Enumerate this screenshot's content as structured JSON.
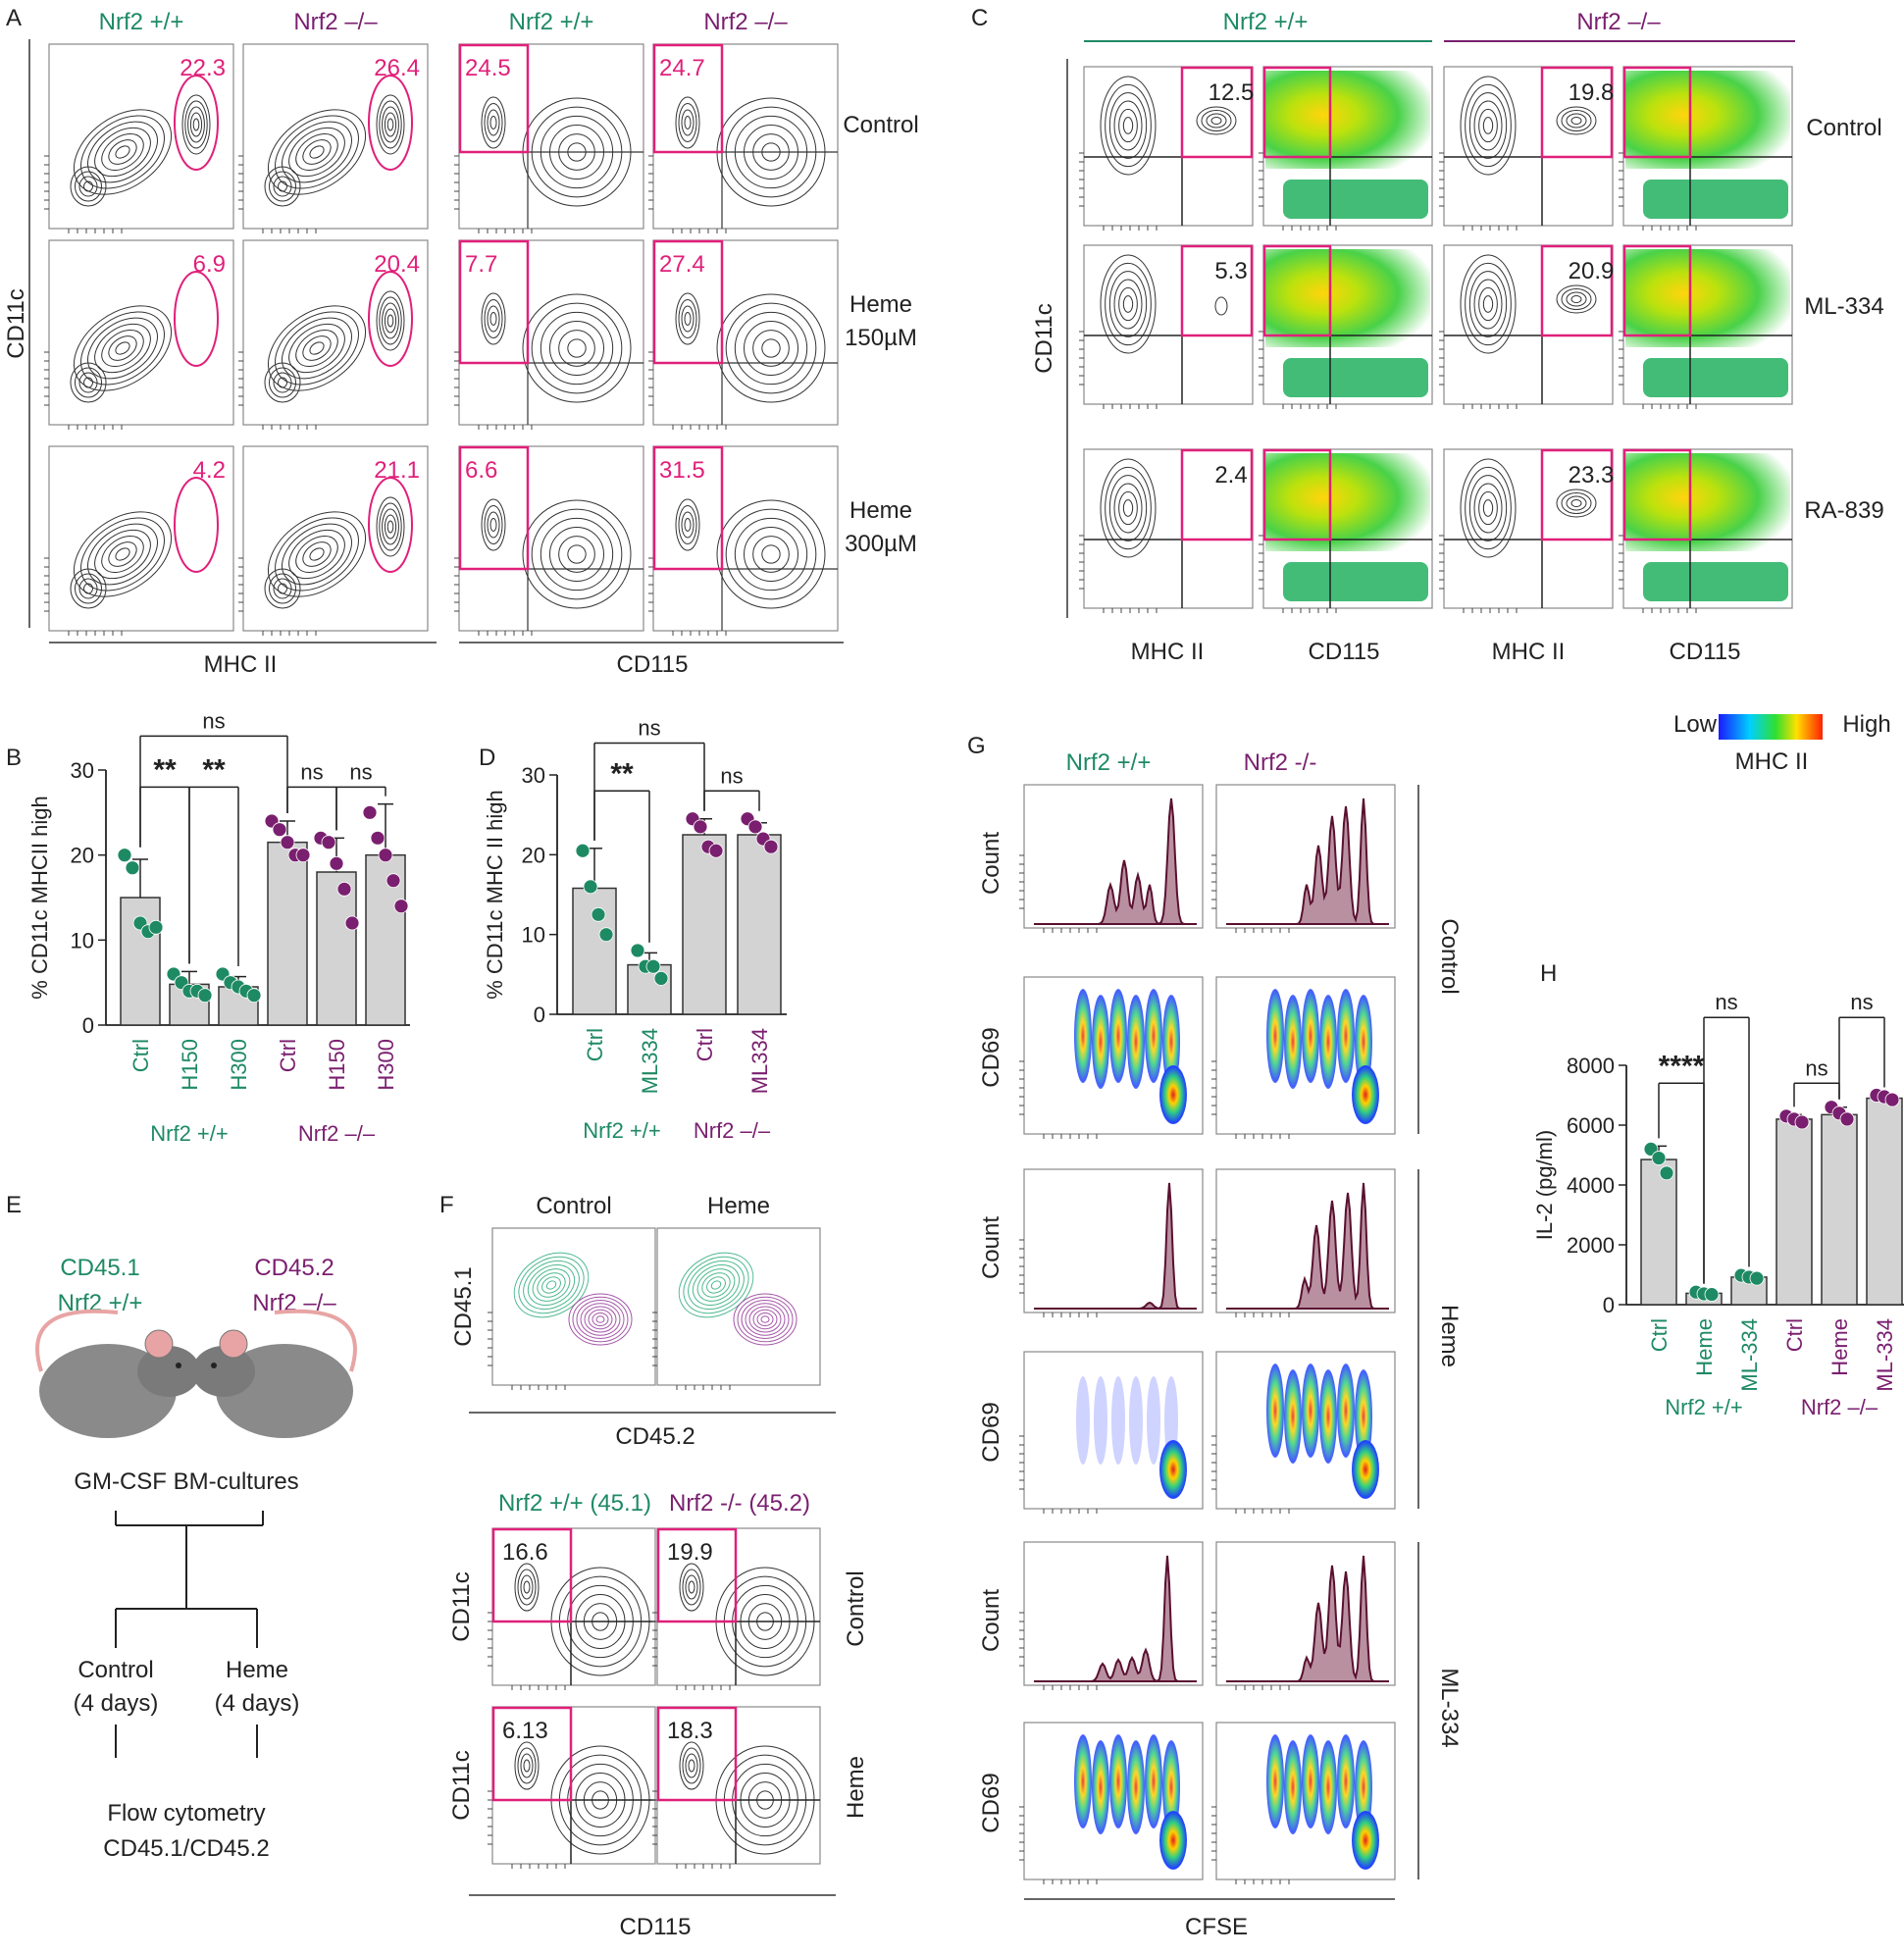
{
  "colors": {
    "wt": "#1e8a64",
    "ko": "#7a1f6f",
    "gate": "#e0207a",
    "bar": "#d3d3d3",
    "hist_fill": "#b9909f",
    "hist_line": "#5a1030"
  },
  "panel_letters": {
    "a": "A",
    "b": "B",
    "c": "C",
    "d": "D",
    "e": "E",
    "f": "F",
    "g": "G",
    "h": "H"
  },
  "genotypes": {
    "wt": "Nrf2 +/+",
    "ko_dash": "Nrf2 –/–",
    "ko_hyphen": "Nrf2 -/-"
  },
  "panel_a": {
    "row_labels": [
      "Control",
      "Heme\n150µM",
      "Heme\n300µM"
    ],
    "y_label": "CD11c",
    "x_labels": [
      "MHC II",
      "CD115"
    ],
    "mhc_values": [
      [
        "22.3",
        "26.4"
      ],
      [
        "6.9",
        "20.4"
      ],
      [
        "4.2",
        "21.1"
      ]
    ],
    "cd115_values": [
      [
        "24.5",
        "24.7"
      ],
      [
        "7.7",
        "27.4"
      ],
      [
        "6.6",
        "31.5"
      ]
    ]
  },
  "panel_c": {
    "row_labels": [
      "Control",
      "ML-334",
      "RA-839"
    ],
    "y_label": "CD11c",
    "x_labels": [
      "MHC II",
      "CD115",
      "MHC II",
      "CD115"
    ],
    "wt_values": [
      "12.5",
      "5.3",
      "2.4"
    ],
    "ko_values": [
      "19.8",
      "20.9",
      "23.3"
    ],
    "scale": {
      "low": "Low",
      "high": "High",
      "label": "MHC II"
    }
  },
  "panel_e": {
    "wt_line1": "CD45.1",
    "ko_line1": "CD45.2",
    "culture": "GM-CSF BM-cultures",
    "arm_control": [
      "Control",
      "(4 days)"
    ],
    "arm_heme": [
      "Heme",
      "(4 days)"
    ],
    "readout": [
      "Flow cytometry",
      "CD45.1/CD45.2"
    ]
  },
  "panel_f": {
    "top_titles": [
      "Control",
      "Heme"
    ],
    "top_y": "CD45.1",
    "top_x": "CD45.2",
    "bottom_titles": [
      "Nrf2 +/+ (45.1)",
      "Nrf2 -/- (45.2)"
    ],
    "row_labels": [
      "Control",
      "Heme"
    ],
    "y_label": "CD11c",
    "x_label": "CD115",
    "values": [
      [
        "16.6",
        "19.9"
      ],
      [
        "6.13",
        "18.3"
      ]
    ]
  },
  "panel_g": {
    "groups": [
      "Control",
      "Heme",
      "ML-334"
    ],
    "count_label": "Count",
    "cd69_label": "CD69",
    "x_label": "CFSE"
  },
  "chart_data": [
    {
      "id": "B",
      "type": "bar",
      "ylabel": "% CD11c MHCII high",
      "ylim": [
        0,
        30
      ],
      "yticks": [
        0,
        10,
        20,
        30
      ],
      "categories": [
        "Ctrl",
        "H150",
        "H300",
        "Ctrl",
        "H150",
        "H300"
      ],
      "groups": [
        "Nrf2 +/+",
        "Nrf2 –/–"
      ],
      "values": [
        15,
        4.8,
        4.5,
        21.5,
        18,
        20
      ],
      "errors": [
        4.5,
        1.5,
        1.2,
        2.5,
        4,
        6
      ],
      "points": [
        [
          20,
          18.5,
          12,
          11,
          11.5
        ],
        [
          6,
          5,
          4,
          4,
          3.5
        ],
        [
          6,
          5,
          4.5,
          4,
          3.5
        ],
        [
          24,
          23,
          21.5,
          20,
          20
        ],
        [
          22,
          21.5,
          19,
          16,
          12
        ],
        [
          25,
          22,
          20,
          17,
          14
        ]
      ],
      "annotations": [
        {
          "from": 0,
          "to": 1,
          "text": "**",
          "y": 28
        },
        {
          "from": 1,
          "to": 2,
          "text": "**",
          "y": 28
        },
        {
          "from": 3,
          "to": 4,
          "text": "ns",
          "y": 28
        },
        {
          "from": 4,
          "to": 5,
          "text": "ns",
          "y": 28
        },
        {
          "from": 0,
          "to": 3,
          "text": "ns",
          "y": 34
        }
      ]
    },
    {
      "id": "D",
      "type": "bar",
      "ylabel": "% CD11c MHC II high",
      "ylim": [
        0,
        30
      ],
      "yticks": [
        0,
        10,
        20,
        30
      ],
      "categories": [
        "Ctrl",
        "ML334",
        "Ctrl",
        "ML334"
      ],
      "groups": [
        "Nrf2 +/+",
        "Nrf2 –/–"
      ],
      "values": [
        15.8,
        6.2,
        22.5,
        22.5
      ],
      "errors": [
        5,
        1.5,
        2,
        1.5
      ],
      "points": [
        [
          20.5,
          16,
          12.5,
          10
        ],
        [
          8,
          6,
          6,
          4.5
        ],
        [
          24.5,
          23.5,
          21,
          20.5
        ],
        [
          24.5,
          23.5,
          22,
          21
        ]
      ],
      "annotations": [
        {
          "from": 0,
          "to": 1,
          "text": "**",
          "y": 28
        },
        {
          "from": 2,
          "to": 3,
          "text": "ns",
          "y": 28
        },
        {
          "from": 0,
          "to": 2,
          "text": "ns",
          "y": 34
        }
      ]
    },
    {
      "id": "H",
      "type": "bar",
      "ylabel": "IL-2 (pg/ml)",
      "ylim": [
        0,
        8000
      ],
      "yticks": [
        0,
        2000,
        4000,
        6000,
        8000
      ],
      "categories": [
        "Ctrl",
        "Heme",
        "ML-334",
        "Ctrl",
        "Heme",
        "ML-334"
      ],
      "groups": [
        "Nrf2 +/+",
        "Nrf2 –/–"
      ],
      "values": [
        4850,
        380,
        920,
        6200,
        6350,
        6900
      ],
      "errors": [
        450,
        60,
        80,
        150,
        250,
        80
      ],
      "points": [
        [
          5200,
          4900,
          4400
        ],
        [
          420,
          360,
          340
        ],
        [
          980,
          920,
          880
        ],
        [
          6300,
          6200,
          6100
        ],
        [
          6600,
          6400,
          6200
        ],
        [
          7000,
          6950,
          6850
        ]
      ],
      "annotations": [
        {
          "from": 0,
          "to": 1,
          "text": "****",
          "y": 7400
        },
        {
          "from": 1,
          "to": 2,
          "text": "ns",
          "y": 9600
        },
        {
          "from": 3,
          "to": 4,
          "text": "ns",
          "y": 7400
        },
        {
          "from": 4,
          "to": 5,
          "text": "ns",
          "y": 9600
        }
      ]
    }
  ]
}
